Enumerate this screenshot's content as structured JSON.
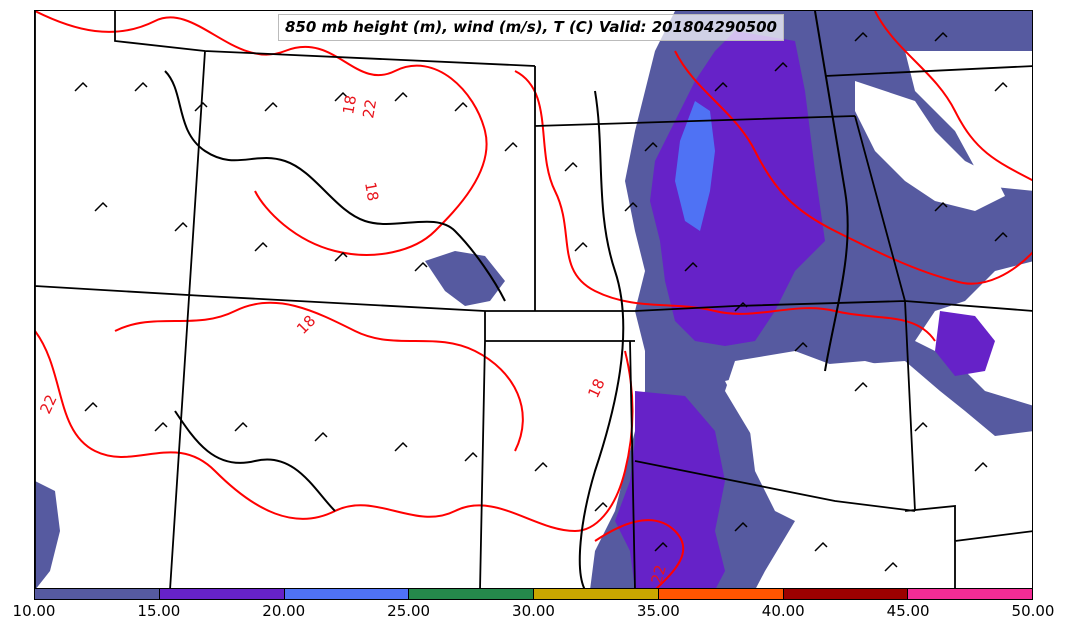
{
  "title": "850 mb height (m), wind (m/s), T (C) Valid: 201804290500",
  "colors": {
    "temperature_contour": "#ff0000",
    "height_contour": "#000000",
    "state_borders": "#000000",
    "wind_barbs": "#000000"
  },
  "colorbar": {
    "colors": [
      "#565aa0",
      "#6622c8",
      "#4f72f4",
      "#25884b",
      "#caa600",
      "#ff5500",
      "#9c0000",
      "#f32c95"
    ],
    "labels": [
      "10.00",
      "15.00",
      "20.00",
      "25.00",
      "30.00",
      "35.00",
      "40.00",
      "45.00",
      "50.00"
    ]
  },
  "temperature_labels": [
    "18",
    "22",
    "18",
    "18",
    "22",
    "18",
    "22"
  ]
}
